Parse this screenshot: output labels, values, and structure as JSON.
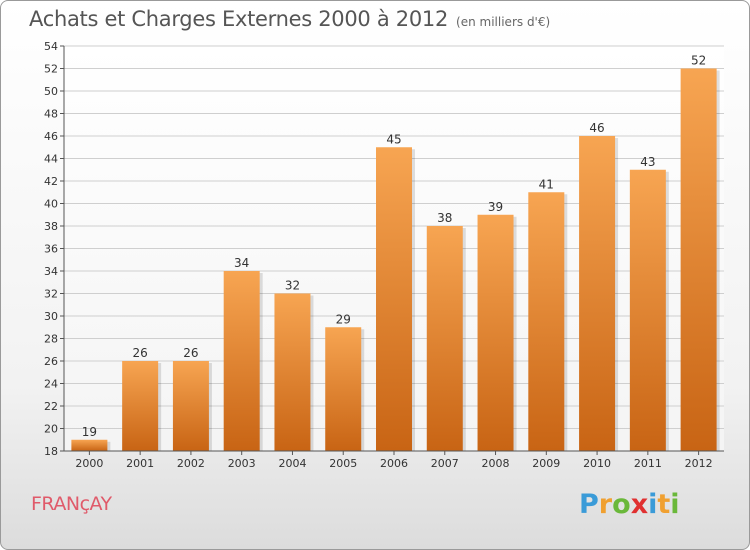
{
  "header": {
    "title": "Achats et Charges Externes 2000 à 2012",
    "subtitle": "(en milliers d'€)"
  },
  "footer": {
    "commune": "FRANçAY",
    "logo": {
      "letters": [
        "P",
        "r",
        "o",
        "x",
        "i",
        "t",
        "i"
      ],
      "colors": [
        "#3a9bd8",
        "#f0a030",
        "#6ab83a",
        "#e03030",
        "#3a9bd8",
        "#f0a030",
        "#6ab83a"
      ]
    }
  },
  "chart_data": {
    "type": "bar",
    "categories": [
      "2000",
      "2001",
      "2002",
      "2003",
      "2004",
      "2005",
      "2006",
      "2007",
      "2008",
      "2009",
      "2010",
      "2011",
      "2012"
    ],
    "values": [
      19,
      26,
      26,
      34,
      32,
      29,
      45,
      38,
      39,
      41,
      46,
      43,
      52
    ],
    "title": "Achats et Charges Externes 2000 à 2012",
    "subtitle": "(en milliers d'€)",
    "xlabel": "",
    "ylabel": "",
    "ylim": [
      18,
      54
    ],
    "yticks": [
      18,
      20,
      22,
      24,
      26,
      28,
      30,
      32,
      34,
      36,
      38,
      40,
      42,
      44,
      46,
      48,
      50,
      52,
      54
    ],
    "grid": true,
    "data_labels": true,
    "colors": {
      "bar_light": "#f7a552",
      "bar_dark": "#c86414",
      "grid": "#cfcfcf",
      "axis": "#555555"
    }
  }
}
